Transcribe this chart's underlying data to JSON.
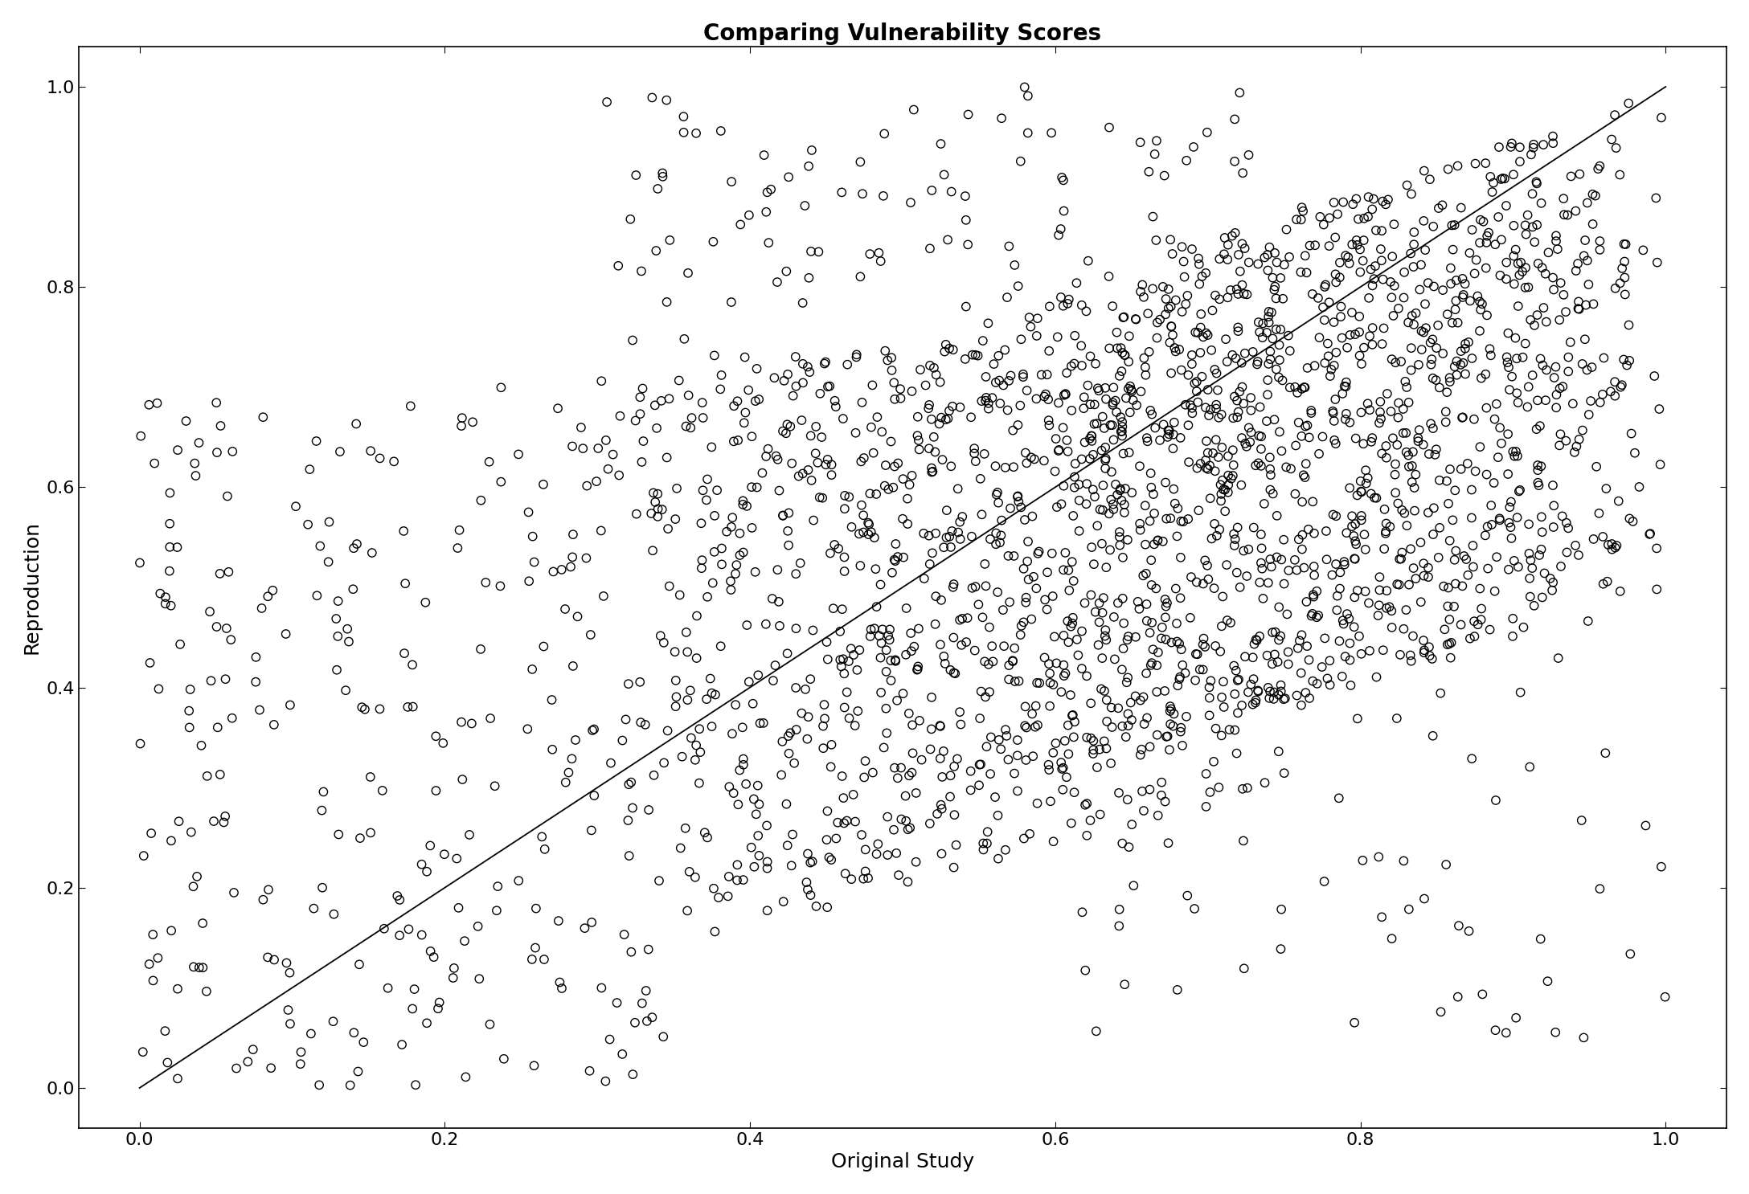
{
  "title": "Comparing Vulnerability Scores",
  "xlabel": "Original Study",
  "ylabel": "Reproduction",
  "xlim": [
    -0.04,
    1.04
  ],
  "ylim": [
    -0.04,
    1.04
  ],
  "xticks": [
    0.0,
    0.2,
    0.4,
    0.6,
    0.8,
    1.0
  ],
  "yticks": [
    0.0,
    0.2,
    0.4,
    0.6,
    0.8,
    1.0
  ],
  "marker_size": 55,
  "marker_color": "none",
  "marker_edge_color": "#000000",
  "marker_edge_width": 1.0,
  "line_color": "#000000",
  "line_width": 1.3,
  "title_fontsize": 20,
  "title_fontweight": "bold",
  "label_fontsize": 18,
  "tick_fontsize": 16,
  "background_color": "#ffffff",
  "seed": 123,
  "n_total": 2500
}
